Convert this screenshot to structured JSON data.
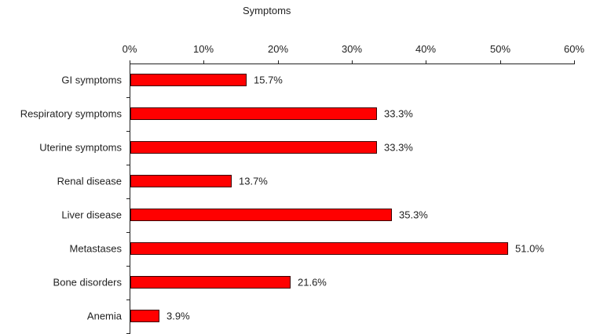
{
  "chart_data": {
    "type": "bar",
    "orientation": "horizontal",
    "title": "Symptoms",
    "xlabel": "",
    "ylabel": "",
    "xlim": [
      0,
      60
    ],
    "x_ticks": [
      "0%",
      "10%",
      "20%",
      "30%",
      "40%",
      "50%",
      "60%"
    ],
    "x_axis_position": "top",
    "grid": false,
    "legend": null,
    "categories": [
      "GI symptoms",
      "Respiratory symptoms",
      "Uterine symptoms",
      "Renal disease",
      "Liver disease",
      "Metastases",
      "Bone disorders",
      "Anemia"
    ],
    "values": [
      15.7,
      33.3,
      33.3,
      13.7,
      35.3,
      51.0,
      21.6,
      3.9
    ],
    "value_labels": [
      "15.7%",
      "33.3%",
      "33.3%",
      "13.7%",
      "35.3%",
      "51.0%",
      "21.6%",
      "3.9%"
    ],
    "bar_color": "#ff0000"
  }
}
